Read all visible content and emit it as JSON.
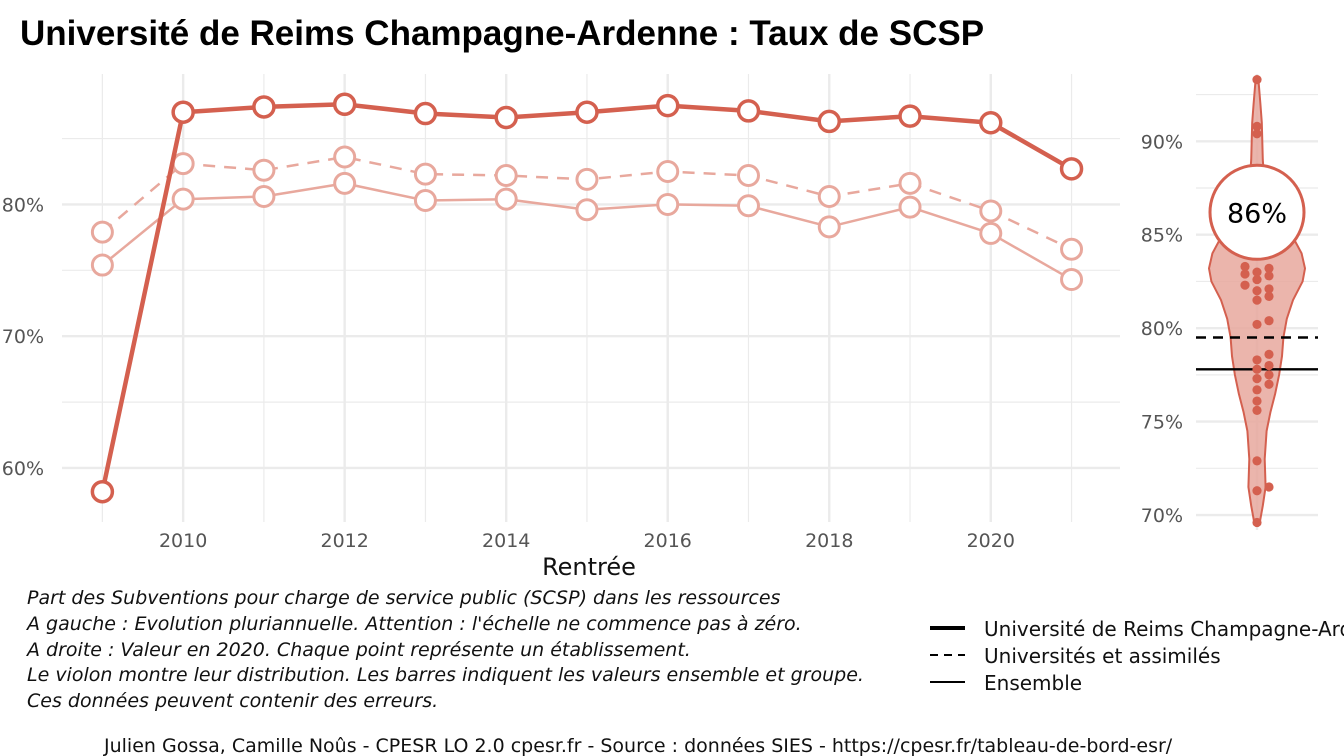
{
  "title": "Université de Reims Champagne-Ardenne  :  Taux de SCSP",
  "colors": {
    "accent": "#d4604f",
    "accent_light": "#e8a89d",
    "violin_fill": "#e8a89d",
    "grid": "#ebebeb",
    "text": "#111111",
    "tick": "#555555"
  },
  "chart_data": [
    {
      "type": "line",
      "xlabel": "Rentrée",
      "ylabel": "",
      "x": [
        2009,
        2010,
        2011,
        2012,
        2013,
        2014,
        2015,
        2016,
        2017,
        2018,
        2019,
        2020,
        2021
      ],
      "xticks": [
        2010,
        2012,
        2014,
        2016,
        2018,
        2020
      ],
      "xtick_labels": [
        "2010",
        "2012",
        "2014",
        "2016",
        "2018",
        "2020"
      ],
      "xlim": [
        2008.5,
        2021.6
      ],
      "yticks": [
        60,
        70,
        80
      ],
      "ytick_labels": [
        "60%",
        "70%",
        "80%"
      ],
      "ylim": [
        55.9,
        89.9
      ],
      "grid": true,
      "series": [
        {
          "name": "Université de Reims Champagne-Ardenne",
          "line": "solid-thick",
          "values": [
            58.2,
            87.0,
            87.4,
            87.6,
            86.9,
            86.6,
            87.0,
            87.5,
            87.1,
            86.3,
            86.7,
            86.2,
            82.7
          ]
        },
        {
          "name": "Universités et assimilés",
          "line": "dashed",
          "values": [
            77.9,
            83.1,
            82.6,
            83.6,
            82.3,
            82.2,
            81.9,
            82.5,
            82.2,
            80.6,
            81.6,
            79.5,
            76.6
          ]
        },
        {
          "name": "Ensemble",
          "line": "solid-thin",
          "values": [
            75.4,
            80.4,
            80.6,
            81.6,
            80.3,
            80.4,
            79.6,
            80.0,
            79.9,
            78.3,
            79.8,
            77.8,
            74.3
          ]
        }
      ]
    },
    {
      "type": "violin",
      "yticks": [
        70,
        75,
        80,
        85,
        90
      ],
      "ytick_labels": [
        "70%",
        "75%",
        "80%",
        "85%",
        "90%"
      ],
      "ylim": [
        69.2,
        93.6
      ],
      "grid": true,
      "highlight": {
        "value": 86.2,
        "label": "86%"
      },
      "reference_lines": [
        {
          "name": "Universités et assimilés",
          "value": 79.5,
          "line": "dashed"
        },
        {
          "name": "Ensemble",
          "value": 77.8,
          "line": "solid"
        }
      ],
      "points": [
        93.3,
        90.8,
        90.4,
        83.3,
        83.2,
        83.0,
        82.9,
        82.8,
        82.6,
        82.3,
        82.1,
        82.0,
        81.7,
        81.5,
        80.4,
        80.2,
        78.6,
        78.3,
        78.0,
        77.8,
        77.5,
        77.3,
        77.0,
        76.7,
        76.1,
        75.6,
        72.9,
        71.5,
        71.3,
        69.6
      ],
      "density_profile": [
        [
          69.5,
          0.05
        ],
        [
          70.5,
          0.12
        ],
        [
          71.5,
          0.18
        ],
        [
          73.0,
          0.16
        ],
        [
          74.5,
          0.2
        ],
        [
          75.5,
          0.28
        ],
        [
          76.5,
          0.38
        ],
        [
          77.5,
          0.46
        ],
        [
          78.5,
          0.52
        ],
        [
          79.5,
          0.55
        ],
        [
          80.5,
          0.62
        ],
        [
          81.5,
          0.75
        ],
        [
          82.5,
          0.95
        ],
        [
          83.2,
          1.0
        ],
        [
          84.0,
          0.93
        ],
        [
          85.0,
          0.72
        ],
        [
          86.0,
          0.45
        ],
        [
          87.0,
          0.25
        ],
        [
          88.0,
          0.15
        ],
        [
          89.0,
          0.12
        ],
        [
          90.0,
          0.11
        ],
        [
          91.0,
          0.1
        ],
        [
          92.0,
          0.07
        ],
        [
          93.3,
          0.03
        ]
      ]
    }
  ],
  "caption_lines": [
    "Part des Subventions pour charge de service public (SCSP) dans les ressources",
    "A gauche : Evolution pluriannuelle. Attention : l'échelle ne commence pas à zéro.",
    "A droite : Valeur en 2020. Chaque point représente un établissement.",
    "Le violon montre leur distribution. Les barres indiquent les valeurs ensemble et groupe.",
    "Ces données peuvent contenir des erreurs."
  ],
  "legend": [
    {
      "label": "Université de Reims Champagne-Ardenne",
      "style": "thick"
    },
    {
      "label": "Universités et assimilés",
      "style": "dashed"
    },
    {
      "label": "Ensemble",
      "style": "thin"
    }
  ],
  "footer": "Julien Gossa, Camille Noûs - CPESR LO 2.0 cpesr.fr - Source : données SIES - https://cpesr.fr/tableau-de-bord-esr/"
}
